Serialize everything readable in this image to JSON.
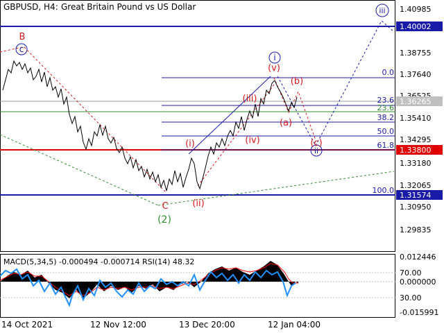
{
  "title": {
    "symbol": "GBPUSD, H4:",
    "description": "Great Britain Pound vs US Dollar"
  },
  "colors": {
    "price_line": "#000000",
    "wave_red": "#d7191c",
    "wave_blue": "#1a1aa8",
    "wave_green": "#2e8b2e",
    "fib_line": "#1a1aa8",
    "support_red": "#e00000",
    "resistance_blue": "#1a1aa8",
    "current_price_box": "#c0c0c0",
    "macd_hist": "#000000",
    "macd_signal": "#ff0000",
    "rsi_line": "#1e90ff",
    "wave_start_point": "#2e8b2e"
  },
  "price_axis": {
    "ticks": [
      "1.40985",
      "1.38755",
      "1.37640",
      "1.36525",
      "1.35410",
      "1.34295",
      "1.33180",
      "1.32065",
      "1.30950",
      "1.29835"
    ],
    "labels": {
      "resistance": "1.40002",
      "current": "1.36265",
      "support": "1.33800",
      "low": "1.31574"
    }
  },
  "fibonacci": {
    "levels": [
      "0.0",
      "23.6",
      "23.6",
      "38.2",
      "50.0",
      "61.8",
      "100.0"
    ]
  },
  "waves": {
    "B": "B",
    "c_circle": "c",
    "C": "C",
    "wave2": "(2)",
    "i_roman": "(i)",
    "ii_roman": "(ii)",
    "iii_roman": "(iii)",
    "iv_roman": "(iv)",
    "v_roman": "(v)",
    "i_circle": "i",
    "ii_circle": "ii",
    "iii_circle": "iii",
    "a_wave": "(a)",
    "b_wave": "(b)",
    "c_wave": "(c)"
  },
  "indicator": {
    "header": "MACD(5,34,5) -0.000494 -0.000714 RSI(14) 48.32",
    "ticks": [
      "0.012446",
      "70.00",
      "0.000000",
      "30.00",
      "-0.015991"
    ]
  },
  "time_axis": {
    "labels": [
      "14 Oct 2021",
      "12 Nov 12:00",
      "13 Dec 20:00",
      "12 Jan 04:00"
    ]
  }
}
